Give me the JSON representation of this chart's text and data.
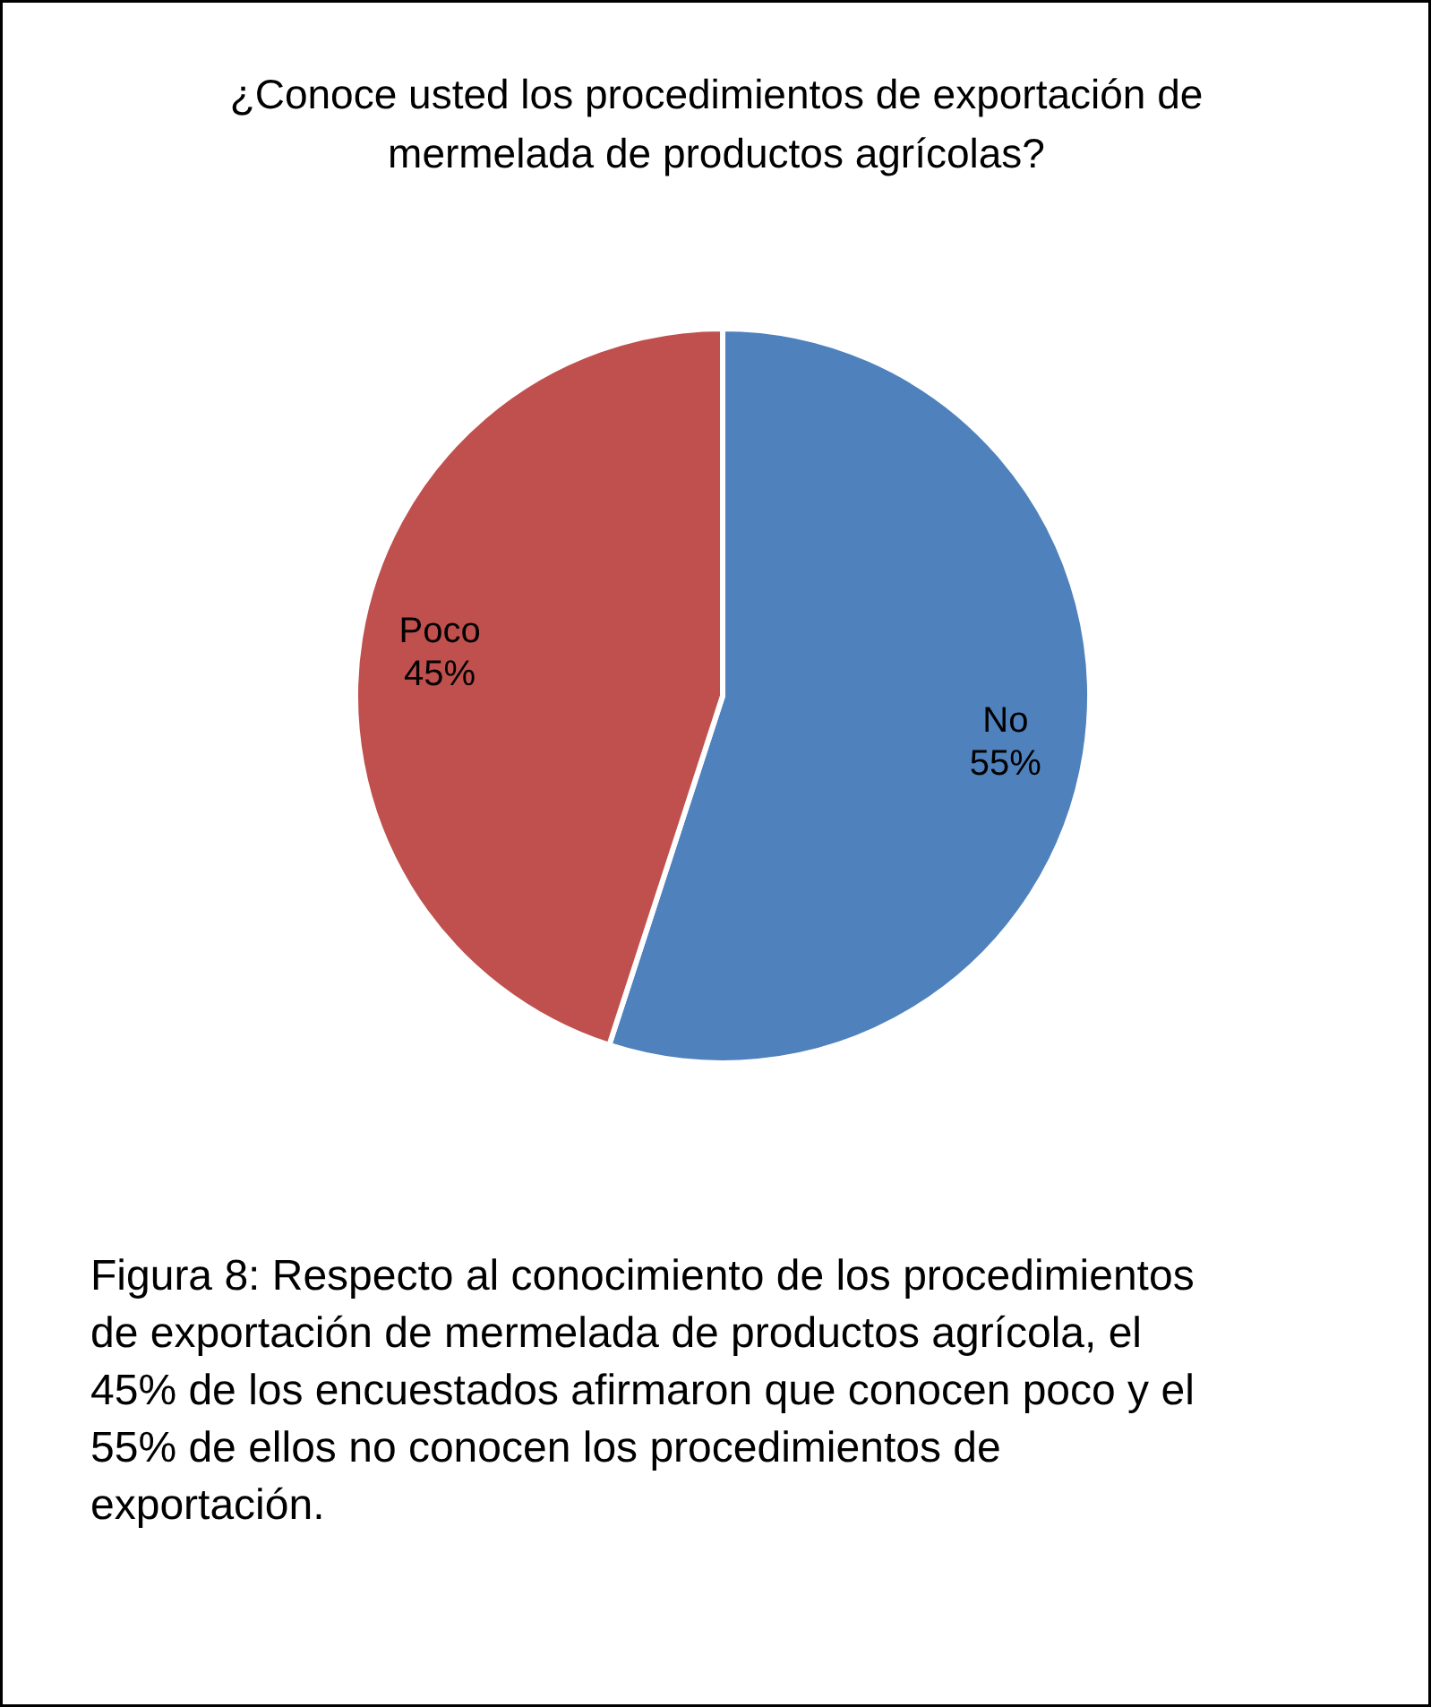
{
  "chart_data": {
    "type": "pie",
    "title": "¿Conoce usted los procedimientos de exportación de mermelada de productos agrícolas?",
    "categories": [
      "No",
      "Poco"
    ],
    "values": [
      55,
      45
    ],
    "value_labels": [
      "55%",
      "45%"
    ],
    "colors": [
      "#4f81bd",
      "#c0504d"
    ],
    "legend": false,
    "annotations": [
      "Figura 8: Respecto al conocimiento de los procedimientos de exportación de mermelada de productos agrícola, el 45% de los encuestados afirmaron que conocen poco y el 55% de ellos no conocen los procedimientos de exportación."
    ]
  }
}
